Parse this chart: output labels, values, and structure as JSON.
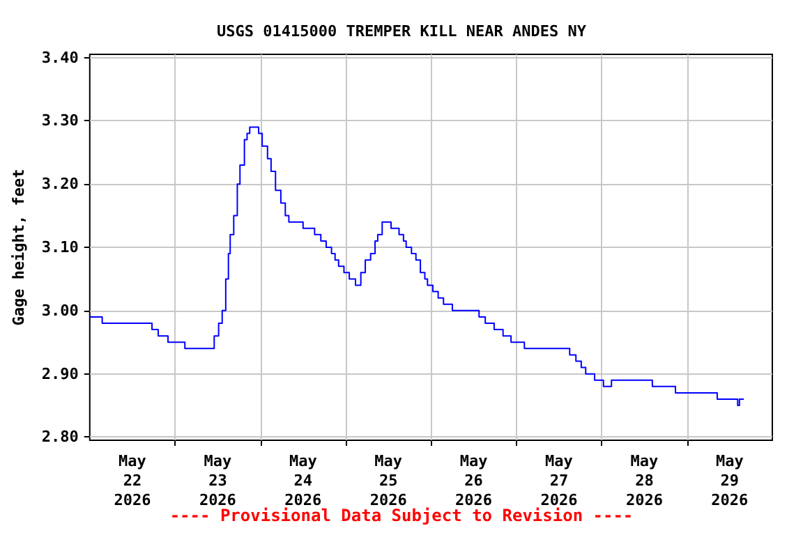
{
  "chart_data": {
    "type": "step",
    "title": "USGS 01415000 TREMPER KILL NEAR ANDES NY",
    "ylabel": "Gage height, feet",
    "annotations": [
      "---- Provisional Data Subject to Revision ----"
    ],
    "series": [
      {
        "color": "#0000ff",
        "x": [
          "2026-05-22T00:00",
          "2026-05-22T03:30",
          "2026-05-22T17:30",
          "2026-05-22T19:15",
          "2026-05-22T22:00",
          "2026-05-23T02:45",
          "2026-05-23T11:00",
          "2026-05-23T12:15",
          "2026-05-23T13:15",
          "2026-05-23T14:15",
          "2026-05-23T15:00",
          "2026-05-23T15:30",
          "2026-05-23T16:30",
          "2026-05-23T17:30",
          "2026-05-23T18:15",
          "2026-05-23T19:30",
          "2026-05-23T20:15",
          "2026-05-23T21:00",
          "2026-05-23T23:30",
          "2026-05-24T00:30",
          "2026-05-24T02:00",
          "2026-05-24T03:00",
          "2026-05-24T04:15",
          "2026-05-24T05:45",
          "2026-05-24T07:00",
          "2026-05-24T08:00",
          "2026-05-24T12:00",
          "2026-05-24T15:15",
          "2026-05-24T17:00",
          "2026-05-24T18:30",
          "2026-05-24T20:00",
          "2026-05-24T21:00",
          "2026-05-24T22:00",
          "2026-05-24T23:30",
          "2026-05-25T01:00",
          "2026-05-25T02:45",
          "2026-05-25T04:15",
          "2026-05-25T05:30",
          "2026-05-25T07:00",
          "2026-05-25T08:15",
          "2026-05-25T09:00",
          "2026-05-25T10:15",
          "2026-05-25T12:45",
          "2026-05-25T15:00",
          "2026-05-25T16:15",
          "2026-05-25T17:00",
          "2026-05-25T18:30",
          "2026-05-25T19:45",
          "2026-05-25T21:00",
          "2026-05-25T22:15",
          "2026-05-25T23:00",
          "2026-05-26T00:30",
          "2026-05-26T02:00",
          "2026-05-26T03:30",
          "2026-05-26T06:00",
          "2026-05-26T13:30",
          "2026-05-26T15:15",
          "2026-05-26T17:45",
          "2026-05-26T20:15",
          "2026-05-26T22:30",
          "2026-05-27T02:15",
          "2026-05-27T15:00",
          "2026-05-27T16:45",
          "2026-05-27T18:15",
          "2026-05-27T19:30",
          "2026-05-27T22:00",
          "2026-05-28T00:30",
          "2026-05-28T02:45",
          "2026-05-28T14:15",
          "2026-05-28T20:45",
          "2026-05-29T08:30",
          "2026-05-29T14:15",
          "2026-05-29T14:45",
          "2026-05-29T16:00"
        ],
        "values": [
          2.99,
          2.98,
          2.97,
          2.96,
          2.95,
          2.94,
          2.96,
          2.98,
          3.0,
          3.05,
          3.09,
          3.12,
          3.15,
          3.2,
          3.23,
          3.27,
          3.28,
          3.29,
          3.28,
          3.26,
          3.24,
          3.22,
          3.19,
          3.17,
          3.15,
          3.14,
          3.13,
          3.12,
          3.11,
          3.1,
          3.09,
          3.08,
          3.07,
          3.06,
          3.05,
          3.04,
          3.06,
          3.08,
          3.09,
          3.11,
          3.12,
          3.14,
          3.13,
          3.12,
          3.11,
          3.1,
          3.09,
          3.08,
          3.06,
          3.05,
          3.04,
          3.03,
          3.02,
          3.01,
          3.0,
          2.99,
          2.98,
          2.97,
          2.96,
          2.95,
          2.94,
          2.93,
          2.92,
          2.91,
          2.9,
          2.89,
          2.88,
          2.89,
          2.88,
          2.87,
          2.86,
          2.85,
          2.86,
          2.86
        ]
      }
    ],
    "xlim": [
      "2026-05-22T00:00",
      "2026-05-30T00:00"
    ],
    "xticks": [
      {
        "value": "2026-05-22T12:00",
        "label": "May\n22\n2026"
      },
      {
        "value": "2026-05-23T12:00",
        "label": "May\n23\n2026"
      },
      {
        "value": "2026-05-24T12:00",
        "label": "May\n24\n2026"
      },
      {
        "value": "2026-05-25T12:00",
        "label": "May\n25\n2026"
      },
      {
        "value": "2026-05-26T12:00",
        "label": "May\n26\n2026"
      },
      {
        "value": "2026-05-27T12:00",
        "label": "May\n27\n2026"
      },
      {
        "value": "2026-05-28T12:00",
        "label": "May\n28\n2026"
      },
      {
        "value": "2026-05-29T12:00",
        "label": "May\n29\n2026"
      },
      {
        "value": "2026-05-23T00:00",
        "label": null
      },
      {
        "value": "2026-05-24T00:00",
        "label": null
      },
      {
        "value": "2026-05-25T00:00",
        "label": null
      },
      {
        "value": "2026-05-26T00:00",
        "label": null
      },
      {
        "value": "2026-05-27T00:00",
        "label": null
      },
      {
        "value": "2026-05-28T00:00",
        "label": null
      },
      {
        "value": "2026-05-29T00:00",
        "label": null
      }
    ],
    "ylim": [
      2.795,
      3.405
    ],
    "yticks": [
      {
        "value": 2.8,
        "label": "2.80"
      },
      {
        "value": 2.9,
        "label": "2.90"
      },
      {
        "value": 3.0,
        "label": "3.00"
      },
      {
        "value": 3.1,
        "label": "3.10"
      },
      {
        "value": 3.2,
        "label": "3.20"
      },
      {
        "value": 3.3,
        "label": "3.30"
      },
      {
        "value": 3.4,
        "label": "3.40"
      }
    ],
    "grid": true,
    "marker": "none",
    "line_style": "solid"
  }
}
